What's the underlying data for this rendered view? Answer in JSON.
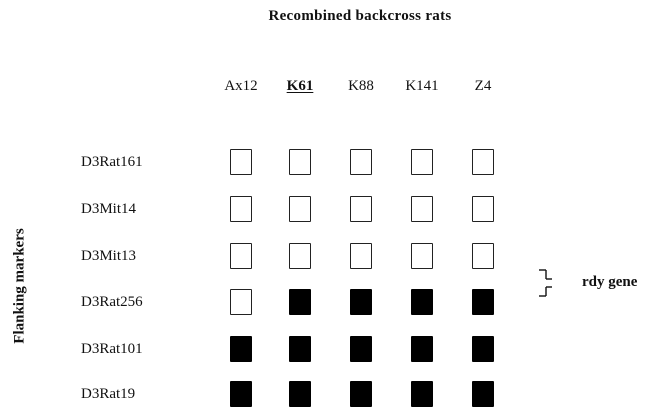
{
  "title": "Recombined backcross rats",
  "axis_label": "Flanking markers",
  "columns": [
    {
      "label": "Ax12",
      "emphasis": false
    },
    {
      "label": "K61",
      "emphasis": true
    },
    {
      "label": "K88",
      "emphasis": false
    },
    {
      "label": "K141",
      "emphasis": false
    },
    {
      "label": "Z4",
      "emphasis": false
    }
  ],
  "rows": [
    {
      "label": "D3Rat161",
      "cells": [
        0,
        0,
        0,
        0,
        0
      ]
    },
    {
      "label": "D3Mit14",
      "cells": [
        0,
        0,
        0,
        0,
        0
      ]
    },
    {
      "label": "D3Mit13",
      "cells": [
        0,
        0,
        0,
        0,
        0
      ]
    },
    {
      "label": "D3Rat256",
      "cells": [
        0,
        1,
        1,
        1,
        1
      ]
    },
    {
      "label": "D3Rat101",
      "cells": [
        1,
        1,
        1,
        1,
        1
      ]
    },
    {
      "label": "D3Rat19",
      "cells": [
        1,
        1,
        1,
        1,
        1
      ]
    }
  ],
  "gene": {
    "label": "rdy gene"
  },
  "colors": {
    "filled": "#000000",
    "empty": "#ffffff",
    "border": "#222222"
  }
}
